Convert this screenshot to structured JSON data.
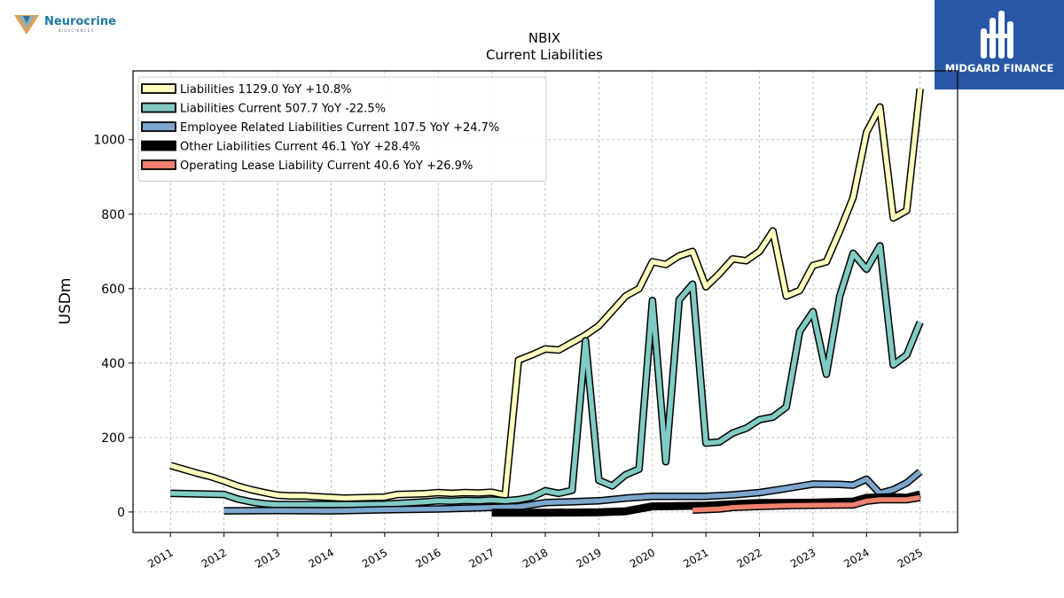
{
  "logos": {
    "left_brand": "Neurocrine",
    "left_tagline": "BIOSCIENCES",
    "right_brand": "MIDGARD FINANCE"
  },
  "chart_data": {
    "type": "line",
    "title": "NBIX",
    "subtitle": "Current  Liabilities",
    "ylabel": "USDm",
    "xlabel": "",
    "x_tick_labels": [
      "2011",
      "2012",
      "2013",
      "2014",
      "2015",
      "2016",
      "2017",
      "2018",
      "2019",
      "2020",
      "2021",
      "2022",
      "2023",
      "2024",
      "2025"
    ],
    "y_ticks": [
      0,
      200,
      400,
      600,
      800,
      1000
    ],
    "xlim": [
      2010.3,
      2025.7
    ],
    "ylim": [
      -55,
      1185
    ],
    "grid": true,
    "legend_position": "top-left",
    "series": [
      {
        "name": "Liabilities",
        "legend_label": "Liabilities  1129.0 YoY +10.8%",
        "color": "#ffffbf",
        "points": [
          [
            2011.0,
            125
          ],
          [
            2011.5,
            104
          ],
          [
            2011.75,
            95
          ],
          [
            2012.0,
            83
          ],
          [
            2012.25,
            70
          ],
          [
            2012.5,
            60
          ],
          [
            2012.75,
            52
          ],
          [
            2013.0,
            45
          ],
          [
            2013.25,
            43
          ],
          [
            2013.5,
            43
          ],
          [
            2013.75,
            41
          ],
          [
            2014.0,
            39
          ],
          [
            2014.25,
            37
          ],
          [
            2014.5,
            38
          ],
          [
            2014.75,
            39
          ],
          [
            2015.0,
            40
          ],
          [
            2015.25,
            47
          ],
          [
            2015.5,
            48
          ],
          [
            2015.75,
            49
          ],
          [
            2016.0,
            52
          ],
          [
            2016.25,
            50
          ],
          [
            2016.5,
            52
          ],
          [
            2016.75,
            51
          ],
          [
            2017.0,
            53
          ],
          [
            2017.25,
            45
          ],
          [
            2017.5,
            408
          ],
          [
            2017.75,
            422
          ],
          [
            2018.0,
            438
          ],
          [
            2018.25,
            435
          ],
          [
            2018.5,
            455
          ],
          [
            2018.75,
            475
          ],
          [
            2019.0,
            500
          ],
          [
            2019.25,
            540
          ],
          [
            2019.5,
            580
          ],
          [
            2019.75,
            600
          ],
          [
            2020.0,
            672
          ],
          [
            2020.25,
            665
          ],
          [
            2020.5,
            688
          ],
          [
            2020.75,
            700
          ],
          [
            2021.0,
            605
          ],
          [
            2021.25,
            640
          ],
          [
            2021.5,
            680
          ],
          [
            2021.75,
            675
          ],
          [
            2022.0,
            700
          ],
          [
            2022.25,
            755
          ],
          [
            2022.5,
            580
          ],
          [
            2022.75,
            595
          ],
          [
            2023.0,
            662
          ],
          [
            2023.25,
            672
          ],
          [
            2023.5,
            755
          ],
          [
            2023.75,
            845
          ],
          [
            2024.0,
            1020
          ],
          [
            2024.25,
            1088
          ],
          [
            2024.5,
            790
          ],
          [
            2024.75,
            810
          ],
          [
            2025.0,
            1137
          ]
        ]
      },
      {
        "name": "Liabilities Current",
        "legend_label": "Liabilities Current  507.7 YoY -22.5%",
        "color": "#80cbc4",
        "points": [
          [
            2011.0,
            50
          ],
          [
            2012.0,
            47
          ],
          [
            2012.25,
            35
          ],
          [
            2012.5,
            27
          ],
          [
            2012.75,
            22
          ],
          [
            2013.0,
            20
          ],
          [
            2013.5,
            20
          ],
          [
            2014.0,
            20
          ],
          [
            2014.5,
            20
          ],
          [
            2015.0,
            21
          ],
          [
            2015.25,
            23
          ],
          [
            2015.5,
            25
          ],
          [
            2015.75,
            27
          ],
          [
            2016.0,
            30
          ],
          [
            2016.25,
            29
          ],
          [
            2016.5,
            31
          ],
          [
            2016.75,
            30
          ],
          [
            2017.0,
            32
          ],
          [
            2017.25,
            30
          ],
          [
            2017.5,
            33
          ],
          [
            2017.75,
            40
          ],
          [
            2018.0,
            57
          ],
          [
            2018.25,
            50
          ],
          [
            2018.5,
            58
          ],
          [
            2018.75,
            460
          ],
          [
            2019.0,
            85
          ],
          [
            2019.25,
            70
          ],
          [
            2019.5,
            100
          ],
          [
            2019.75,
            115
          ],
          [
            2020.0,
            568
          ],
          [
            2020.25,
            135
          ],
          [
            2020.5,
            570
          ],
          [
            2020.75,
            612
          ],
          [
            2021.0,
            185
          ],
          [
            2021.25,
            188
          ],
          [
            2021.5,
            212
          ],
          [
            2021.75,
            225
          ],
          [
            2022.0,
            248
          ],
          [
            2022.25,
            255
          ],
          [
            2022.5,
            282
          ],
          [
            2022.75,
            485
          ],
          [
            2023.0,
            538
          ],
          [
            2023.25,
            370
          ],
          [
            2023.5,
            580
          ],
          [
            2023.75,
            695
          ],
          [
            2024.0,
            652
          ],
          [
            2024.25,
            715
          ],
          [
            2024.5,
            395
          ],
          [
            2024.75,
            422
          ],
          [
            2025.0,
            510
          ]
        ]
      },
      {
        "name": "Employee Related Liabilities Current",
        "legend_label": "Employee Related Liabilities Current  107.5 YoY +24.7%",
        "color": "#7ba6cd",
        "points": [
          [
            2012.0,
            3
          ],
          [
            2013.0,
            4
          ],
          [
            2014.0,
            3
          ],
          [
            2015.0,
            6
          ],
          [
            2016.0,
            8
          ],
          [
            2017.0,
            12
          ],
          [
            2017.5,
            14
          ],
          [
            2018.0,
            25
          ],
          [
            2019.0,
            30
          ],
          [
            2019.5,
            37
          ],
          [
            2020.0,
            42
          ],
          [
            2021.0,
            42
          ],
          [
            2021.5,
            46
          ],
          [
            2022.0,
            52
          ],
          [
            2022.5,
            63
          ],
          [
            2023.0,
            75
          ],
          [
            2023.5,
            74
          ],
          [
            2023.75,
            72
          ],
          [
            2024.0,
            88
          ],
          [
            2024.25,
            50
          ],
          [
            2024.5,
            60
          ],
          [
            2024.75,
            78
          ],
          [
            2025.0,
            108
          ]
        ]
      },
      {
        "name": "Other Liabilities Current",
        "legend_label": "Other Liabilities Current  46.1 YoY +28.4%",
        "color": "#000000",
        "points": [
          [
            2017.0,
            -2
          ],
          [
            2018.0,
            -2
          ],
          [
            2019.0,
            -1
          ],
          [
            2019.5,
            2
          ],
          [
            2020.0,
            15
          ],
          [
            2021.0,
            17
          ],
          [
            2021.5,
            21
          ],
          [
            2022.0,
            24
          ],
          [
            2023.0,
            25
          ],
          [
            2023.75,
            28
          ],
          [
            2024.0,
            38
          ],
          [
            2024.5,
            40
          ],
          [
            2024.75,
            38
          ],
          [
            2025.0,
            47
          ]
        ]
      },
      {
        "name": "Operating Lease Liability Current",
        "legend_label": "Operating Lease Liability Current  40.6 YoY +26.9%",
        "color": "#f08070",
        "points": [
          [
            2020.75,
            5
          ],
          [
            2021.25,
            8
          ],
          [
            2021.5,
            12
          ],
          [
            2022.0,
            15
          ],
          [
            2022.5,
            17
          ],
          [
            2023.0,
            18
          ],
          [
            2023.75,
            19
          ],
          [
            2024.0,
            29
          ],
          [
            2024.25,
            33
          ],
          [
            2024.75,
            33
          ],
          [
            2025.0,
            39
          ]
        ]
      }
    ]
  }
}
